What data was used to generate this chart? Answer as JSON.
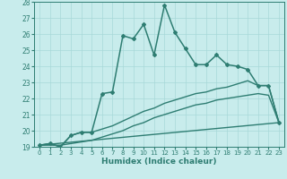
{
  "xlabel": "Humidex (Indice chaleur)",
  "bg_color": "#c8ecec",
  "line_color": "#2e7d72",
  "grid_color": "#a8d8d8",
  "xlim": [
    -0.5,
    23.5
  ],
  "ylim": [
    19,
    28
  ],
  "yticks": [
    19,
    20,
    21,
    22,
    23,
    24,
    25,
    26,
    27,
    28
  ],
  "xticks": [
    0,
    1,
    2,
    3,
    4,
    5,
    6,
    7,
    8,
    9,
    10,
    11,
    12,
    13,
    14,
    15,
    16,
    17,
    18,
    19,
    20,
    21,
    22,
    23
  ],
  "series_main": {
    "x": [
      0,
      1,
      2,
      3,
      4,
      5,
      6,
      7,
      8,
      9,
      10,
      11,
      12,
      13,
      14,
      15,
      16,
      17,
      18,
      19,
      20,
      21,
      22,
      23
    ],
    "y": [
      19.1,
      19.2,
      19.0,
      19.7,
      19.9,
      19.9,
      22.3,
      22.4,
      25.9,
      25.7,
      26.6,
      24.7,
      27.8,
      26.1,
      25.1,
      24.1,
      24.1,
      24.7,
      24.1,
      24.0,
      23.8,
      22.8,
      22.8,
      20.5
    ]
  },
  "series_upper": {
    "x": [
      0,
      1,
      2,
      3,
      4,
      5,
      6,
      7,
      8,
      9,
      10,
      11,
      12,
      13,
      14,
      15,
      16,
      17,
      18,
      19,
      20,
      21,
      22,
      23
    ],
    "y": [
      19.1,
      19.2,
      19.0,
      19.7,
      19.9,
      19.9,
      20.1,
      20.3,
      20.6,
      20.9,
      21.2,
      21.4,
      21.7,
      21.9,
      22.1,
      22.3,
      22.4,
      22.6,
      22.7,
      22.9,
      23.1,
      22.8,
      22.8,
      20.5
    ]
  },
  "series_mid": {
    "x": [
      0,
      1,
      2,
      3,
      4,
      5,
      6,
      7,
      8,
      9,
      10,
      11,
      12,
      13,
      14,
      15,
      16,
      17,
      18,
      19,
      20,
      21,
      22,
      23
    ],
    "y": [
      19.1,
      19.1,
      19.1,
      19.2,
      19.3,
      19.4,
      19.6,
      19.8,
      20.0,
      20.3,
      20.5,
      20.8,
      21.0,
      21.2,
      21.4,
      21.6,
      21.7,
      21.9,
      22.0,
      22.1,
      22.2,
      22.3,
      22.2,
      20.5
    ]
  },
  "series_line": {
    "x": [
      0,
      23
    ],
    "y": [
      19.1,
      20.5
    ]
  }
}
